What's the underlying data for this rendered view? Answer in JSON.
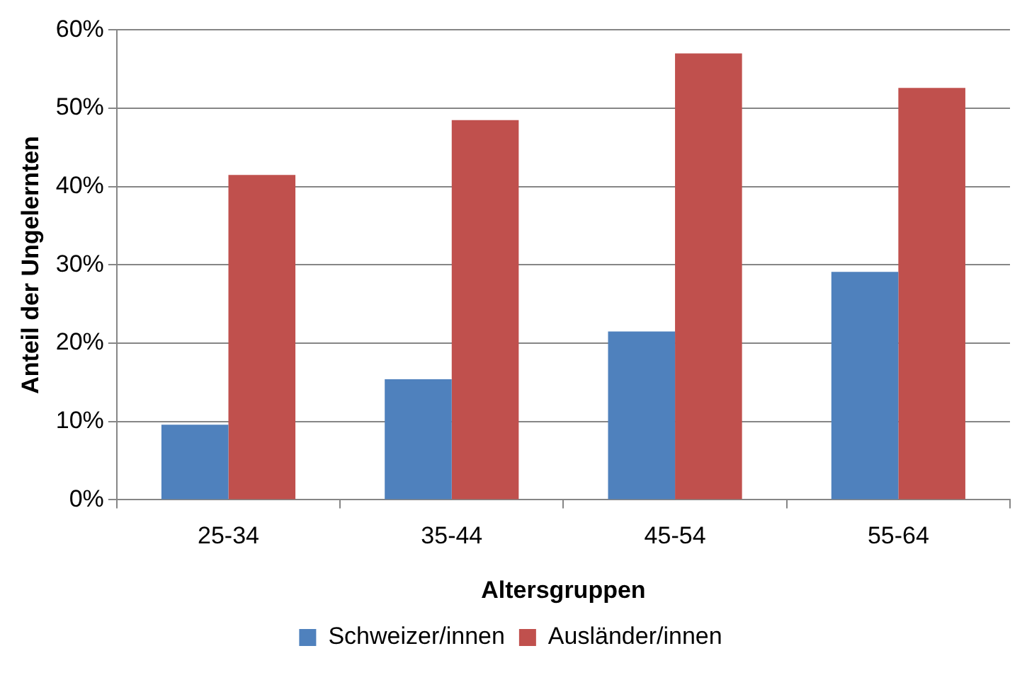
{
  "chart_data": {
    "type": "bar",
    "xlabel": "Altersgruppen",
    "ylabel": "Anteil der Ungelernten",
    "categories": [
      "25-34",
      "35-44",
      "45-54",
      "55-64"
    ],
    "series": [
      {
        "name": "Schweizer/innen",
        "color": "#4f81bd",
        "values": [
          9.6,
          15.4,
          21.5,
          29.1
        ]
      },
      {
        "name": "Ausländer/innen",
        "color": "#c0504d",
        "values": [
          41.5,
          48.5,
          57.0,
          52.6
        ]
      }
    ],
    "ylim": [
      0,
      60
    ],
    "yticks": [
      {
        "value": 0,
        "label": "0%"
      },
      {
        "value": 10,
        "label": "10%"
      },
      {
        "value": 20,
        "label": "20%"
      },
      {
        "value": 30,
        "label": "30%"
      },
      {
        "value": 40,
        "label": "40%"
      },
      {
        "value": 50,
        "label": "50%"
      },
      {
        "value": 60,
        "label": "60%"
      }
    ],
    "grid": "y",
    "legend": "bottom"
  }
}
